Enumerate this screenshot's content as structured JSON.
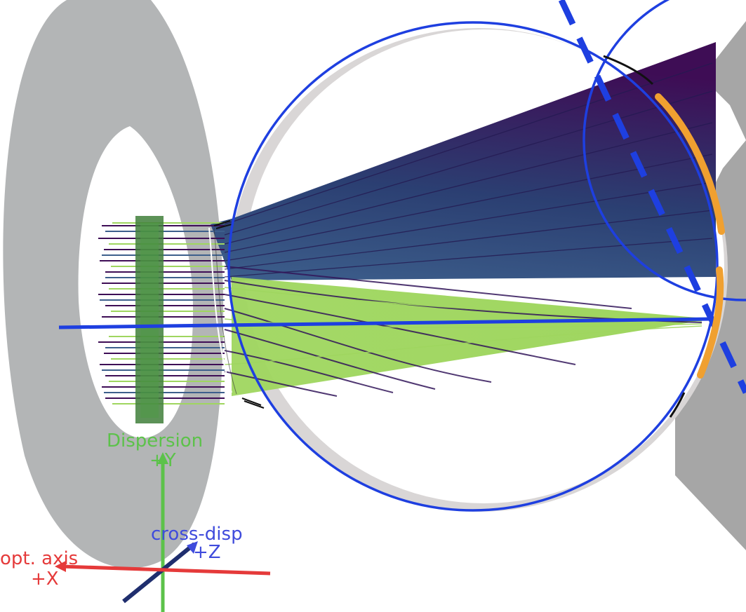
{
  "labels": {
    "dispersion": "Dispersion",
    "dispersion_dir": "+Y",
    "cross_disp": "cross-disp",
    "cross_disp_dir": "+Z",
    "opt_axis": "opt. axis",
    "opt_axis_dir": "+X"
  },
  "colors": {
    "background": "#ffffff",
    "gray_ring": "#b3b5b6",
    "gray_plane": "#a6a6a6",
    "blue_circles": "#1e3fe0",
    "orange_arc": "#f0a030",
    "rays_dark": "#3e0d55",
    "rays_mid": "#3d5f8c",
    "rays_light": "#9fd65f",
    "aperture_green": "#3f7f3a",
    "axis_y": "#5cc24a",
    "axis_z": "#3f4bdc",
    "axis_x": "#e53a3a"
  },
  "icons": {
    "axis_triad": "coordinate-axes-icon"
  }
}
